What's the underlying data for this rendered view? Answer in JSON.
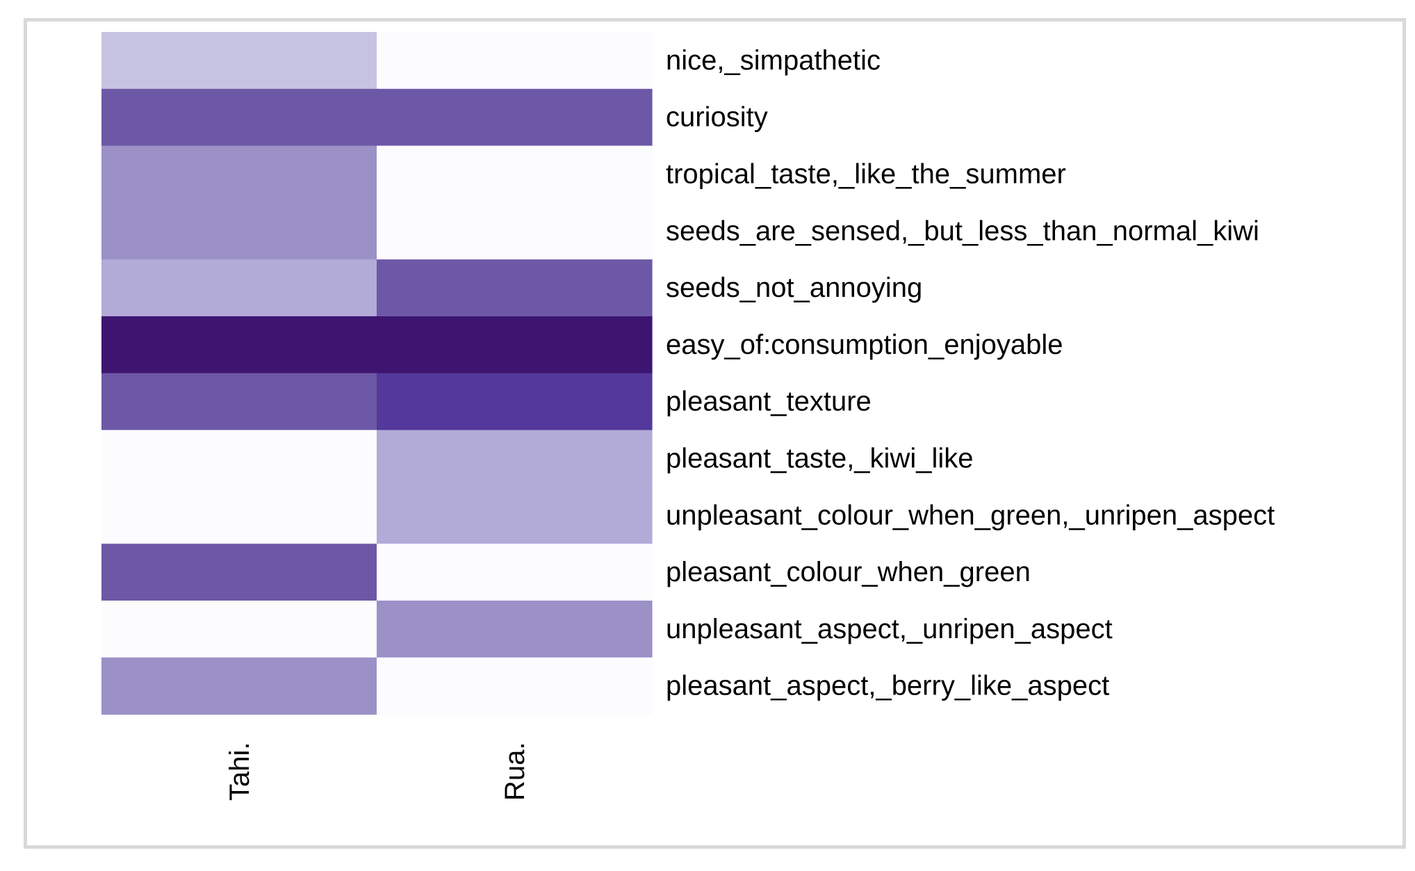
{
  "chart_data": {
    "type": "heatmap",
    "x_categories": [
      "Tahi.",
      "Rua."
    ],
    "y_categories": [
      "nice,_simpathetic",
      "curiosity",
      "tropical_taste,_like_the_summer",
      "seeds_are_sensed,_but_less_than_normal_kiwi",
      "seeds_not_annoying",
      "easy_of:consumption_enjoyable",
      "pleasant_texture",
      "pleasant_taste,_kiwi_like",
      "unpleasant_colour_when_green,_unripen_aspect",
      "pleasant_colour_when_green",
      "unpleasant_aspect,_unripen_aspect",
      "pleasant_aspect,_berry_like_aspect"
    ],
    "values": [
      [
        0.3,
        0.0
      ],
      [
        0.75,
        0.75
      ],
      [
        0.5,
        0.0
      ],
      [
        0.5,
        0.0
      ],
      [
        0.4,
        0.75
      ],
      [
        1.0,
        1.0
      ],
      [
        0.75,
        0.85
      ],
      [
        0.0,
        0.4
      ],
      [
        0.0,
        0.4
      ],
      [
        0.75,
        0.0
      ],
      [
        0.0,
        0.5
      ],
      [
        0.5,
        0.0
      ]
    ],
    "color_scale": [
      "#fcfbfd",
      "#c6c3e2",
      "#9d92c8",
      "#b2aad7",
      "#6d58a7",
      "#54389b",
      "#3d1571"
    ],
    "title": "",
    "xlabel": "",
    "ylabel": "",
    "legend": "none",
    "grid": false
  }
}
